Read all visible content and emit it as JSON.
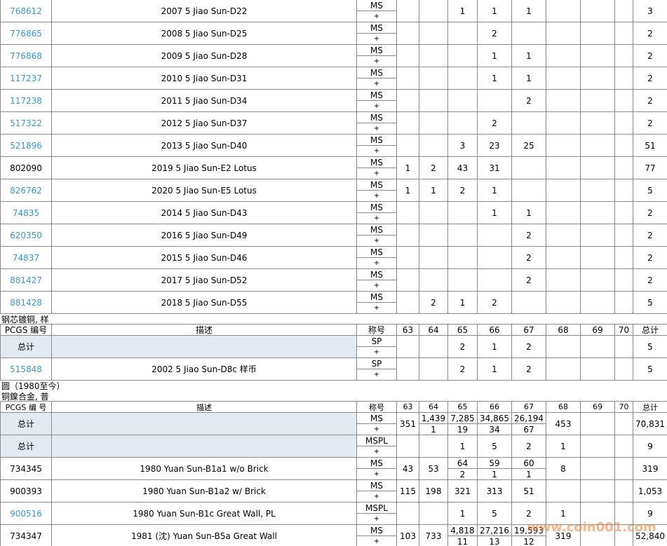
{
  "table1": {
    "rows": [
      {
        "id": "768612",
        "link": true,
        "desc": "2007 5 Jiao Sun-D22",
        "grades": [
          "MS",
          "+"
        ],
        "counts": [
          null,
          null,
          "1",
          "1",
          "1",
          null,
          null,
          null,
          "3"
        ]
      },
      {
        "id": "776865",
        "link": true,
        "desc": "2008 5 Jiao Sun-D25",
        "grades": [
          "MS",
          "+"
        ],
        "counts": [
          null,
          null,
          null,
          "2",
          null,
          null,
          null,
          null,
          "2"
        ]
      },
      {
        "id": "776868",
        "link": true,
        "desc": "2009 5 Jiao Sun-D28",
        "grades": [
          "MS",
          "+"
        ],
        "counts": [
          null,
          null,
          null,
          "1",
          "1",
          null,
          null,
          null,
          "2"
        ]
      },
      {
        "id": "117237",
        "link": true,
        "desc": "2010 5 Jiao Sun-D31",
        "grades": [
          "MS",
          "+"
        ],
        "counts": [
          null,
          null,
          null,
          "1",
          "1",
          null,
          null,
          null,
          "2"
        ]
      },
      {
        "id": "117238",
        "link": true,
        "desc": "2011 5 Jiao Sun-D34",
        "grades": [
          "MS",
          "+"
        ],
        "counts": [
          null,
          null,
          null,
          null,
          "2",
          null,
          null,
          null,
          "2"
        ]
      },
      {
        "id": "517322",
        "link": true,
        "desc": "2012 5 Jiao Sun-D37",
        "grades": [
          "MS",
          "+"
        ],
        "counts": [
          null,
          null,
          null,
          "2",
          null,
          null,
          null,
          null,
          "2"
        ]
      },
      {
        "id": "521896",
        "link": true,
        "desc": "2013 5 Jiao Sun-D40",
        "grades": [
          "MS",
          "+"
        ],
        "counts": [
          null,
          null,
          "3",
          "23",
          "25",
          null,
          null,
          null,
          "51"
        ]
      },
      {
        "id": "802090",
        "link": false,
        "desc": "2019 5 Jiao Sun-E2 Lotus",
        "grades": [
          "MS",
          "+"
        ],
        "counts": [
          "1",
          "2",
          "43",
          "31",
          null,
          null,
          null,
          null,
          "77"
        ]
      },
      {
        "id": "826762",
        "link": true,
        "desc": "2020 5 Jiao Sun-E5 Lotus",
        "grades": [
          "MS",
          "+"
        ],
        "counts": [
          "1",
          "1",
          "2",
          "1",
          null,
          null,
          null,
          null,
          "5"
        ]
      },
      {
        "id": "74835",
        "link": true,
        "desc": "2014 5 Jiao Sun-D43",
        "grades": [
          "MS",
          "+"
        ],
        "counts": [
          null,
          null,
          null,
          "1",
          "1",
          null,
          null,
          null,
          "2"
        ]
      },
      {
        "id": "620350",
        "link": true,
        "desc": "2016 5 Jiao Sun-D49",
        "grades": [
          "MS",
          "+"
        ],
        "counts": [
          null,
          null,
          null,
          null,
          "2",
          null,
          null,
          null,
          "2"
        ]
      },
      {
        "id": "74837",
        "link": true,
        "desc": "2015 5 Jiao Sun-D46",
        "grades": [
          "MS",
          "+"
        ],
        "counts": [
          null,
          null,
          null,
          null,
          "2",
          null,
          null,
          null,
          "2"
        ]
      },
      {
        "id": "881427",
        "link": true,
        "desc": "2017 5 Jiao Sun-D52",
        "grades": [
          "MS",
          "+"
        ],
        "counts": [
          null,
          null,
          null,
          null,
          "2",
          null,
          null,
          null,
          "2"
        ]
      },
      {
        "id": "881428",
        "link": true,
        "desc": "2018 5 Jiao Sun-D55",
        "grades": [
          "MS",
          "+"
        ],
        "counts": [
          null,
          "2",
          "1",
          "2",
          null,
          null,
          null,
          null,
          "5"
        ]
      }
    ]
  },
  "section1": {
    "title": "钢芯镀铜, 样",
    "header": [
      "PCGS 编号",
      "描述",
      "称号",
      "63",
      "64",
      "65",
      "66",
      "67",
      "68",
      "69",
      "70",
      "总计"
    ],
    "rows": [
      {
        "id": "总计",
        "link": false,
        "shaded": true,
        "desc": null,
        "grades": [
          "SP",
          "+"
        ],
        "counts": [
          null,
          null,
          "2",
          "1",
          "2",
          null,
          null,
          null,
          "5"
        ]
      },
      {
        "id": "515848",
        "link": true,
        "desc": "2002 5 Jiao Sun-D8c 样币",
        "grades": [
          "SP",
          "+"
        ],
        "counts": [
          null,
          null,
          "2",
          "1",
          "2",
          null,
          null,
          null,
          "5"
        ]
      }
    ]
  },
  "section2": {
    "group": "圆（1980至今）",
    "title": "铜鎳合金, 普",
    "header": [
      "PCGS 编 号",
      "描述",
      "称号",
      "63",
      "64",
      "65",
      "66",
      "67",
      "68",
      "69",
      "70",
      "总计"
    ],
    "rows": [
      {
        "id": "总计",
        "link": false,
        "shaded": true,
        "desc": null,
        "grades": [
          "MS",
          "+"
        ],
        "counts": [
          "351",
          [
            "1,439",
            "1"
          ],
          [
            "7,285",
            "19"
          ],
          [
            "34,865",
            "34"
          ],
          [
            "26,194",
            "67"
          ],
          "453",
          null,
          null,
          "70,831"
        ]
      },
      {
        "id": "总计",
        "link": false,
        "shaded": true,
        "desc": null,
        "grades": [
          "MSPL",
          "+"
        ],
        "counts": [
          null,
          null,
          "1",
          "5",
          "2",
          "1",
          null,
          null,
          "9"
        ]
      },
      {
        "id": "734345",
        "link": false,
        "desc": "1980 Yuan Sun-B1a1 w/o Brick",
        "grades": [
          "MS",
          "+"
        ],
        "counts": [
          "43",
          "53",
          [
            "64",
            "2"
          ],
          [
            "59",
            "1"
          ],
          [
            "60",
            "1"
          ],
          "8",
          null,
          null,
          "319"
        ]
      },
      {
        "id": "900393",
        "link": false,
        "desc": "1980 Yuan Sun-B1a2 w/ Brick",
        "grades": [
          "MS",
          "+"
        ],
        "counts": [
          "115",
          "198",
          "321",
          "313",
          "51",
          null,
          null,
          null,
          "1,053"
        ]
      },
      {
        "id": "900516",
        "link": true,
        "desc": "1980 Yuan Sun-B1c Great Wall, PL",
        "grades": [
          "MSPL",
          "+"
        ],
        "counts": [
          null,
          null,
          "1",
          "5",
          "2",
          "1",
          null,
          null,
          "9"
        ]
      },
      {
        "id": "734347",
        "link": false,
        "desc": "1981 (沈) Yuan Sun-B5a Great Wall",
        "grades": [
          "MS",
          "+"
        ],
        "counts": [
          "103",
          "733",
          [
            "4,818",
            "11"
          ],
          [
            "27,216",
            "13"
          ],
          [
            "19,593",
            "12"
          ],
          "319",
          null,
          null,
          "52,840"
        ]
      }
    ]
  },
  "watermark": "www.coin001.com"
}
